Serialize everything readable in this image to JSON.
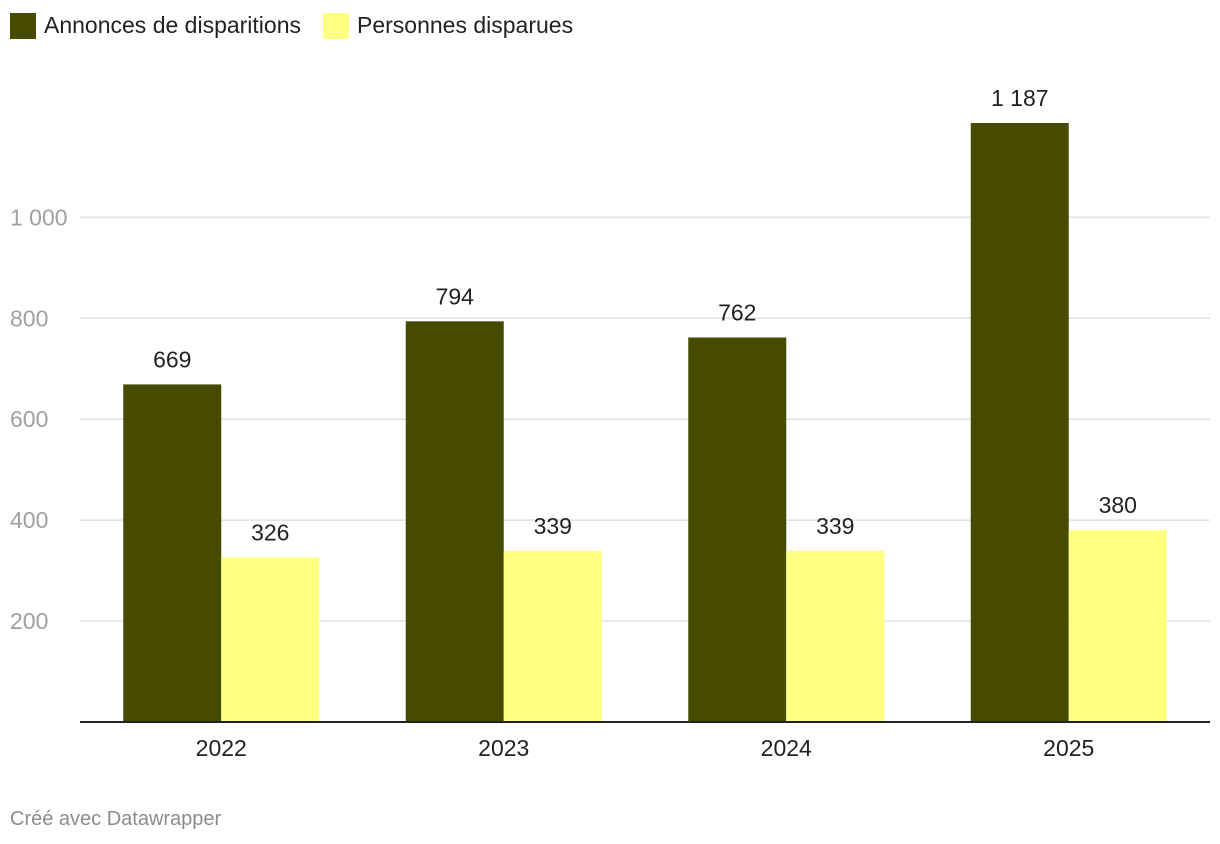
{
  "chart_data": {
    "type": "bar",
    "title": "",
    "xlabel": "",
    "ylabel": "",
    "categories": [
      "2022",
      "2023",
      "2024",
      "2025"
    ],
    "series": [
      {
        "name": "Annonces de disparitions",
        "values": [
          669,
          794,
          762,
          1187
        ],
        "labels": [
          "669",
          "794",
          "762",
          "1 187"
        ],
        "color": "#464b00"
      },
      {
        "name": "Personnes disparues",
        "values": [
          326,
          339,
          339,
          380
        ],
        "labels": [
          "326",
          "339",
          "339",
          "380"
        ],
        "color": "#ffff80"
      }
    ],
    "ylim": [
      0,
      1187
    ],
    "yticks": [
      200,
      400,
      600,
      800,
      1000
    ],
    "ytick_labels": [
      "200",
      "400",
      "600",
      "800",
      "1 000"
    ],
    "grid": true,
    "legend_position": "top-left"
  },
  "footer": {
    "credit": "Créé avec Datawrapper"
  }
}
